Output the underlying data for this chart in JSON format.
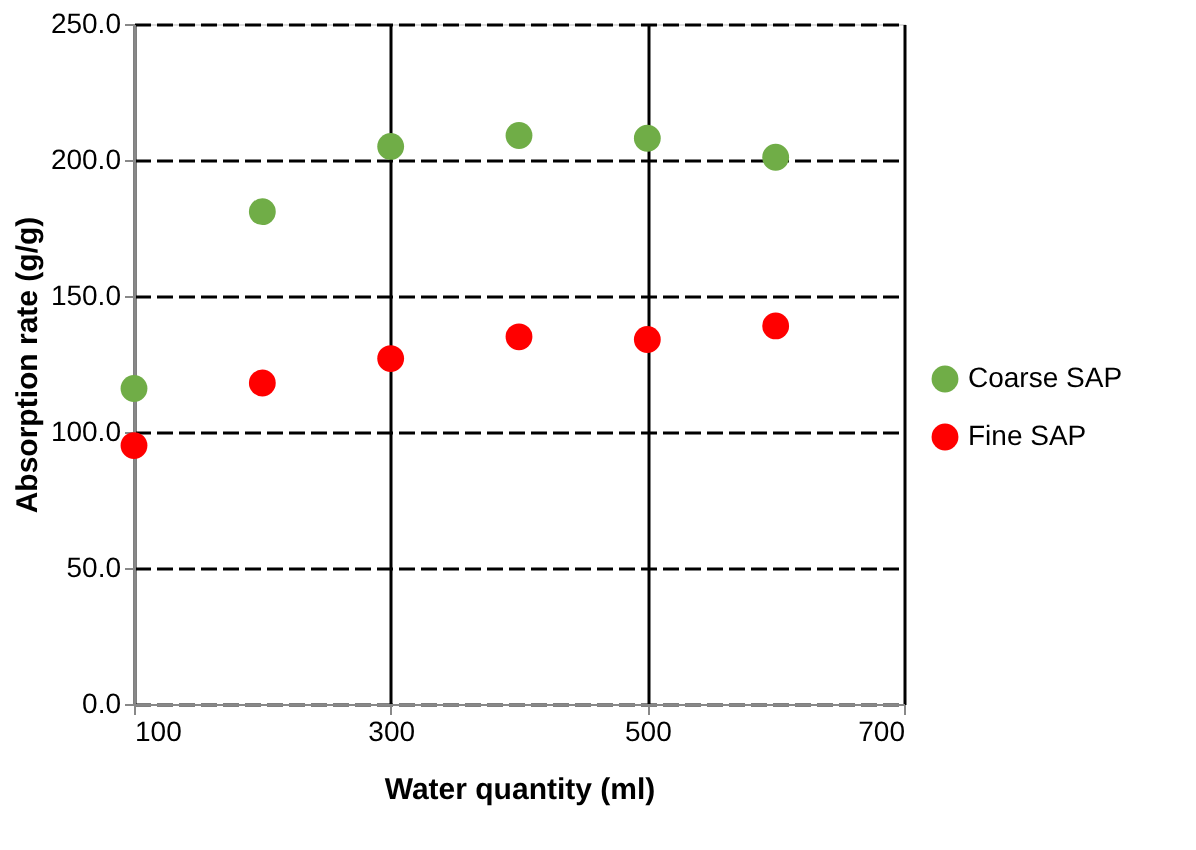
{
  "chart_data": {
    "type": "scatter",
    "xlabel": "Water quantity (ml)",
    "ylabel": "Absorption rate (g/g)",
    "x": [
      100,
      200,
      300,
      400,
      500,
      600
    ],
    "series": [
      {
        "name": "Coarse SAP",
        "color": "#70ad47",
        "values": [
          116,
          181,
          205,
          209,
          208,
          201
        ]
      },
      {
        "name": "Fine SAP",
        "color": "#ff0000",
        "values": [
          95,
          118,
          127,
          135,
          134,
          139
        ]
      }
    ],
    "xlim": [
      100,
      700
    ],
    "xticks": [
      100,
      300,
      500,
      700
    ],
    "ylim": [
      0,
      250
    ],
    "yticks": [
      {
        "value": 0,
        "label": "0.0"
      },
      {
        "value": 50,
        "label": "50.0"
      },
      {
        "value": 100,
        "label": "100.0"
      },
      {
        "value": 150,
        "label": "150.0"
      },
      {
        "value": 200,
        "label": "200.0"
      },
      {
        "value": 250,
        "label": "250.0"
      }
    ],
    "grid": true,
    "legend": "right",
    "marker": "circle"
  }
}
